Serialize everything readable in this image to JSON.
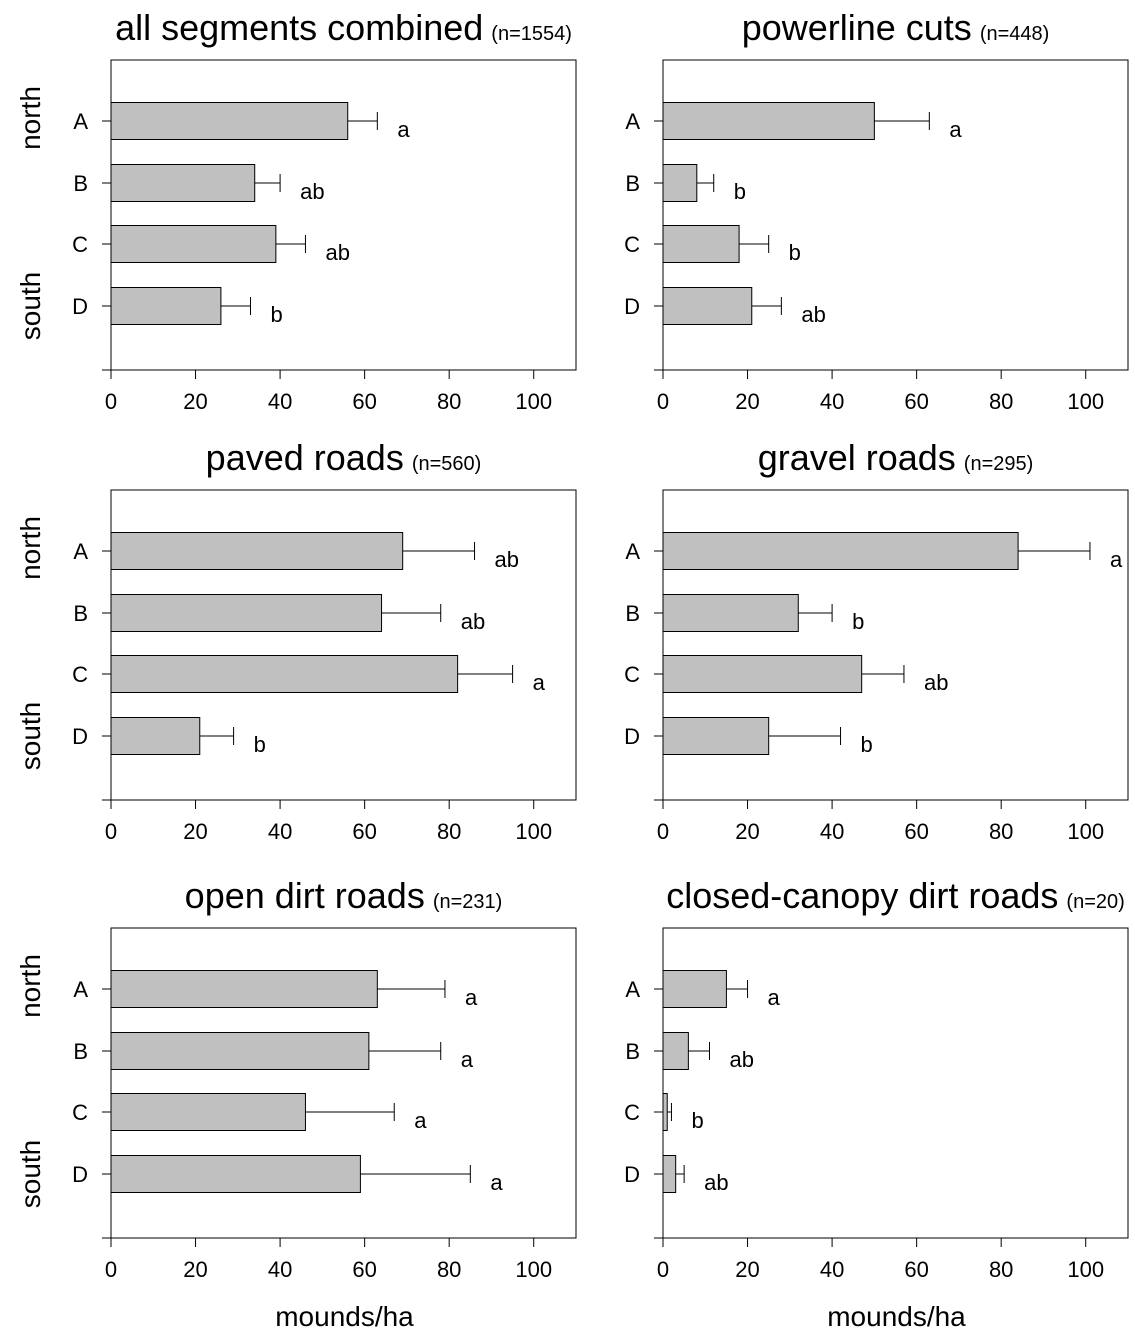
{
  "chart_data": [
    {
      "type": "bar",
      "orientation": "horizontal",
      "title": "all segments combined",
      "subtitle": "(n=1554)",
      "categories": [
        "A",
        "B",
        "C",
        "D"
      ],
      "values": [
        56,
        34,
        39,
        26
      ],
      "errors": [
        7,
        6,
        7,
        7
      ],
      "significance": [
        "a",
        "ab",
        "ab",
        "b"
      ],
      "xlim": [
        0,
        110
      ],
      "xticks": [
        0,
        20,
        40,
        60,
        80,
        100
      ],
      "xlabel": "",
      "side_labels": [
        "north",
        "south"
      ],
      "bar_color": "#c0c0c0"
    },
    {
      "type": "bar",
      "orientation": "horizontal",
      "title": "powerline cuts",
      "subtitle": "(n=448)",
      "categories": [
        "A",
        "B",
        "C",
        "D"
      ],
      "values": [
        50,
        8,
        18,
        21
      ],
      "errors": [
        13,
        4,
        7,
        7
      ],
      "significance": [
        "a",
        "b",
        "b",
        "ab"
      ],
      "xlim": [
        0,
        110
      ],
      "xticks": [
        0,
        20,
        40,
        60,
        80,
        100
      ],
      "xlabel": "",
      "side_labels": [],
      "bar_color": "#c0c0c0"
    },
    {
      "type": "bar",
      "orientation": "horizontal",
      "title": "paved roads",
      "subtitle": "(n=560)",
      "categories": [
        "A",
        "B",
        "C",
        "D"
      ],
      "values": [
        69,
        64,
        82,
        21
      ],
      "errors": [
        17,
        14,
        13,
        8
      ],
      "significance": [
        "ab",
        "ab",
        "a",
        "b"
      ],
      "xlim": [
        0,
        110
      ],
      "xticks": [
        0,
        20,
        40,
        60,
        80,
        100
      ],
      "xlabel": "",
      "side_labels": [
        "north",
        "south"
      ],
      "bar_color": "#c0c0c0"
    },
    {
      "type": "bar",
      "orientation": "horizontal",
      "title": "gravel roads",
      "subtitle": "(n=295)",
      "categories": [
        "A",
        "B",
        "C",
        "D"
      ],
      "values": [
        84,
        32,
        47,
        25
      ],
      "errors": [
        17,
        8,
        10,
        17
      ],
      "significance": [
        "a",
        "b",
        "ab",
        "b"
      ],
      "xlim": [
        0,
        110
      ],
      "xticks": [
        0,
        20,
        40,
        60,
        80,
        100
      ],
      "xlabel": "",
      "side_labels": [],
      "bar_color": "#c0c0c0"
    },
    {
      "type": "bar",
      "orientation": "horizontal",
      "title": "open dirt roads",
      "subtitle": "(n=231)",
      "categories": [
        "A",
        "B",
        "C",
        "D"
      ],
      "values": [
        63,
        61,
        46,
        59
      ],
      "errors": [
        16,
        17,
        21,
        26
      ],
      "significance": [
        "a",
        "a",
        "a",
        "a"
      ],
      "xlim": [
        0,
        110
      ],
      "xticks": [
        0,
        20,
        40,
        60,
        80,
        100
      ],
      "xlabel": "mounds/ha",
      "side_labels": [
        "north",
        "south"
      ],
      "bar_color": "#c0c0c0"
    },
    {
      "type": "bar",
      "orientation": "horizontal",
      "title": "closed-canopy dirt roads",
      "subtitle": "(n=20)",
      "categories": [
        "A",
        "B",
        "C",
        "D"
      ],
      "values": [
        15,
        6,
        1,
        3
      ],
      "errors": [
        5,
        5,
        1,
        2
      ],
      "significance": [
        "a",
        "ab",
        "b",
        "ab"
      ],
      "xlim": [
        0,
        110
      ],
      "xticks": [
        0,
        20,
        40,
        60,
        80,
        100
      ],
      "xlabel": "mounds/ha",
      "side_labels": [],
      "bar_color": "#c0c0c0"
    }
  ]
}
